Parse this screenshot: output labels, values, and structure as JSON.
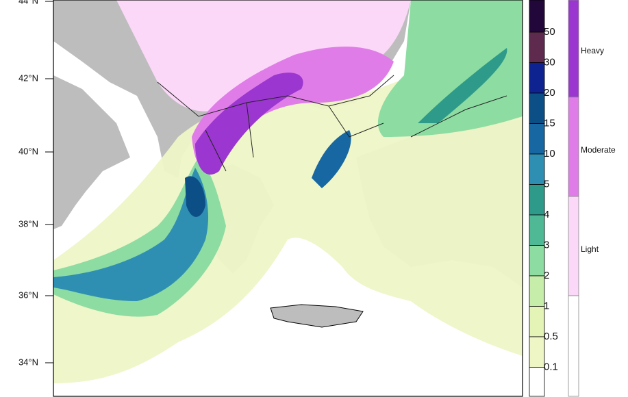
{
  "latitude_labels": [
    "44°N",
    "42°N",
    "40°N",
    "38°N",
    "36°N",
    "34°N"
  ],
  "rain_colorbar": {
    "labels": [
      "50",
      "30",
      "20",
      "15",
      "10",
      "5",
      "4",
      "3",
      "2",
      "1",
      "0.5",
      "0.1"
    ],
    "colors": [
      "#22083a",
      "#5e2a4e",
      "#0e238f",
      "#0c4f86",
      "#1667a2",
      "#2f8fb3",
      "#2e9b8a",
      "#4fb996",
      "#8ddca2",
      "#c6eeaa",
      "#e4f3b6",
      "#eef6c6",
      "#ffffff"
    ]
  },
  "snow_legend": {
    "labels": [
      "Heavy",
      "Moderate",
      "Light"
    ],
    "colors": [
      "#9b36d0",
      "#e07ce8",
      "#fbd8f8",
      "#ffffff"
    ]
  }
}
